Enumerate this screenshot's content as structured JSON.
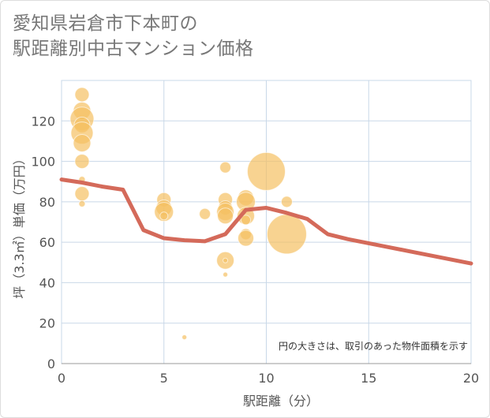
{
  "title_lines": [
    "愛知県岩倉市下本町の",
    "駅距離別中古マンション価格"
  ],
  "chart_data": {
    "type": "scatter",
    "xlabel": "駅距離（分）",
    "ylabel": "坪（3.3㎡）単価（万円）",
    "xlim": [
      0,
      20
    ],
    "ylim": [
      0,
      140
    ],
    "x_ticks": [
      0,
      5,
      10,
      15,
      20
    ],
    "y_ticks": [
      0,
      20,
      40,
      60,
      80,
      100,
      120
    ],
    "grid": true,
    "annotation": "円の大きさは、取引のあった物件面積を示す",
    "colors": {
      "bubble": "#f5c062",
      "line": "#d46a5a",
      "grid": "#c9d8e8"
    },
    "points": [
      {
        "x": 1,
        "y": 133,
        "size": 9
      },
      {
        "x": 1,
        "y": 125,
        "size": 11
      },
      {
        "x": 1,
        "y": 121,
        "size": 15
      },
      {
        "x": 1,
        "y": 118,
        "size": 10
      },
      {
        "x": 1,
        "y": 114,
        "size": 14
      },
      {
        "x": 1,
        "y": 109,
        "size": 11
      },
      {
        "x": 1,
        "y": 100,
        "size": 9
      },
      {
        "x": 1,
        "y": 91,
        "size": 4
      },
      {
        "x": 1,
        "y": 84,
        "size": 9
      },
      {
        "x": 1,
        "y": 79,
        "size": 4
      },
      {
        "x": 5,
        "y": 81,
        "size": 9
      },
      {
        "x": 5,
        "y": 77,
        "size": 10
      },
      {
        "x": 5,
        "y": 75,
        "size": 12
      },
      {
        "x": 5,
        "y": 73,
        "size": 5
      },
      {
        "x": 6,
        "y": 13,
        "size": 3
      },
      {
        "x": 7,
        "y": 74,
        "size": 7
      },
      {
        "x": 8,
        "y": 97,
        "size": 7
      },
      {
        "x": 8,
        "y": 81,
        "size": 9
      },
      {
        "x": 8,
        "y": 77,
        "size": 9
      },
      {
        "x": 8,
        "y": 75,
        "size": 11
      },
      {
        "x": 8,
        "y": 73,
        "size": 10
      },
      {
        "x": 8,
        "y": 51,
        "size": 11
      },
      {
        "x": 8,
        "y": 51,
        "size": 3
      },
      {
        "x": 8,
        "y": 44,
        "size": 3
      },
      {
        "x": 9,
        "y": 82,
        "size": 10
      },
      {
        "x": 9,
        "y": 80,
        "size": 12
      },
      {
        "x": 9,
        "y": 73,
        "size": 11
      },
      {
        "x": 9,
        "y": 71,
        "size": 6
      },
      {
        "x": 9,
        "y": 64,
        "size": 7
      },
      {
        "x": 9,
        "y": 62,
        "size": 10
      },
      {
        "x": 10,
        "y": 95,
        "size": 24
      },
      {
        "x": 11,
        "y": 80,
        "size": 7
      },
      {
        "x": 11,
        "y": 64,
        "size": 25
      }
    ],
    "trend_line": {
      "x": [
        0,
        1,
        2,
        3,
        4,
        5,
        6,
        7,
        8,
        9,
        10,
        11,
        12,
        13,
        14,
        15,
        16,
        17,
        18,
        19,
        20
      ],
      "y": [
        91,
        89.5,
        87.5,
        86,
        66,
        62,
        61,
        60.5,
        64,
        76,
        77,
        74.5,
        71.5,
        64,
        61.5,
        59.5,
        57.5,
        55.5,
        53.5,
        51.5,
        49.5
      ]
    }
  }
}
